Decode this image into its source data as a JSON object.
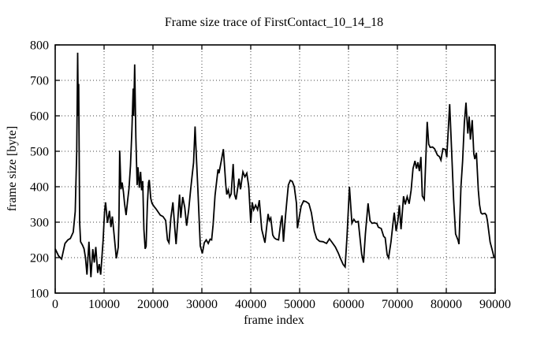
{
  "chart_data": {
    "type": "line",
    "title": "Frame size trace of FirstContact_10_14_18",
    "xlabel": "frame index",
    "ylabel": "frame size [byte]",
    "xlim": [
      0,
      90000
    ],
    "ylim": [
      100,
      800
    ],
    "x_ticks": [
      0,
      10000,
      20000,
      30000,
      40000,
      50000,
      60000,
      70000,
      80000,
      90000
    ],
    "y_ticks": [
      100,
      200,
      300,
      400,
      500,
      600,
      700,
      800
    ],
    "grid": true,
    "legend": "none",
    "line_color": "#000000",
    "background": "#ffffff",
    "series": [
      {
        "name": "frame size",
        "points": [
          [
            0,
            225
          ],
          [
            700,
            205
          ],
          [
            1300,
            196
          ],
          [
            2000,
            240
          ],
          [
            2600,
            250
          ],
          [
            3100,
            254
          ],
          [
            3700,
            272
          ],
          [
            4100,
            330
          ],
          [
            4400,
            500
          ],
          [
            4600,
            778
          ],
          [
            4720,
            600
          ],
          [
            4800,
            690
          ],
          [
            5000,
            300
          ],
          [
            5200,
            245
          ],
          [
            5600,
            235
          ],
          [
            5900,
            225
          ],
          [
            6200,
            200
          ],
          [
            6500,
            152
          ],
          [
            6900,
            245
          ],
          [
            7300,
            145
          ],
          [
            7700,
            224
          ],
          [
            8000,
            186
          ],
          [
            8300,
            230
          ],
          [
            8700,
            157
          ],
          [
            9000,
            182
          ],
          [
            9300,
            152
          ],
          [
            9800,
            250
          ],
          [
            10100,
            330
          ],
          [
            10300,
            356
          ],
          [
            10700,
            298
          ],
          [
            11100,
            332
          ],
          [
            11400,
            286
          ],
          [
            11700,
            316
          ],
          [
            12100,
            258
          ],
          [
            12500,
            198
          ],
          [
            12700,
            212
          ],
          [
            12900,
            230
          ],
          [
            13050,
            310
          ],
          [
            13200,
            502
          ],
          [
            13450,
            393
          ],
          [
            13700,
            412
          ],
          [
            13950,
            386
          ],
          [
            14200,
            352
          ],
          [
            14500,
            320
          ],
          [
            14800,
            360
          ],
          [
            15100,
            395
          ],
          [
            15400,
            460
          ],
          [
            15700,
            560
          ],
          [
            15950,
            677
          ],
          [
            16070,
            600
          ],
          [
            16250,
            745
          ],
          [
            16500,
            540
          ],
          [
            16750,
            405
          ],
          [
            16940,
            455
          ],
          [
            17210,
            397
          ],
          [
            17470,
            442
          ],
          [
            17680,
            390
          ],
          [
            17900,
            416
          ],
          [
            18150,
            280
          ],
          [
            18400,
            225
          ],
          [
            18600,
            232
          ],
          [
            18850,
            350
          ],
          [
            19100,
            412
          ],
          [
            19250,
            419
          ],
          [
            19550,
            367
          ],
          [
            19800,
            353
          ],
          [
            20200,
            345
          ],
          [
            20600,
            338
          ],
          [
            21150,
            327
          ],
          [
            21500,
            320
          ],
          [
            22050,
            316
          ],
          [
            22600,
            305
          ],
          [
            22960,
            250
          ],
          [
            23280,
            242
          ],
          [
            23660,
            312
          ],
          [
            24080,
            356
          ],
          [
            24460,
            282
          ],
          [
            24730,
            238
          ],
          [
            25110,
            312
          ],
          [
            25430,
            378
          ],
          [
            25690,
            312
          ],
          [
            26080,
            371
          ],
          [
            26500,
            342
          ],
          [
            26890,
            290
          ],
          [
            27300,
            335
          ],
          [
            27700,
            390
          ],
          [
            28000,
            430
          ],
          [
            28300,
            468
          ],
          [
            28620,
            570
          ],
          [
            28870,
            487
          ],
          [
            29200,
            390
          ],
          [
            29670,
            233
          ],
          [
            30100,
            212
          ],
          [
            30500,
            242
          ],
          [
            30900,
            250
          ],
          [
            31300,
            240
          ],
          [
            31700,
            252
          ],
          [
            32000,
            250
          ],
          [
            32300,
            293
          ],
          [
            32700,
            375
          ],
          [
            33300,
            449
          ],
          [
            33500,
            438
          ],
          [
            34000,
            475
          ],
          [
            34400,
            506
          ],
          [
            34900,
            404
          ],
          [
            35100,
            378
          ],
          [
            35400,
            391
          ],
          [
            35700,
            371
          ],
          [
            36000,
            380
          ],
          [
            36400,
            464
          ],
          [
            36700,
            378
          ],
          [
            37000,
            364
          ],
          [
            37600,
            423
          ],
          [
            37900,
            393
          ],
          [
            38400,
            442
          ],
          [
            38800,
            428
          ],
          [
            39200,
            438
          ],
          [
            39600,
            400
          ],
          [
            40000,
            298
          ],
          [
            40300,
            356
          ],
          [
            40600,
            335
          ],
          [
            41000,
            348
          ],
          [
            41400,
            335
          ],
          [
            41750,
            362
          ],
          [
            42250,
            280
          ],
          [
            42900,
            242
          ],
          [
            43550,
            323
          ],
          [
            43800,
            305
          ],
          [
            44100,
            312
          ],
          [
            44500,
            264
          ],
          [
            44800,
            256
          ],
          [
            45200,
            252
          ],
          [
            45700,
            250
          ],
          [
            46150,
            300
          ],
          [
            46400,
            319
          ],
          [
            46700,
            245
          ],
          [
            47000,
            300
          ],
          [
            47350,
            355
          ],
          [
            47700,
            405
          ],
          [
            48100,
            418
          ],
          [
            48500,
            415
          ],
          [
            48900,
            400
          ],
          [
            49350,
            353
          ],
          [
            49550,
            283
          ],
          [
            50300,
            345
          ],
          [
            50800,
            360
          ],
          [
            51300,
            358
          ],
          [
            51900,
            352
          ],
          [
            52400,
            327
          ],
          [
            53000,
            275
          ],
          [
            53500,
            253
          ],
          [
            54100,
            246
          ],
          [
            54800,
            245
          ],
          [
            55500,
            240
          ],
          [
            56100,
            253
          ],
          [
            56700,
            242
          ],
          [
            57300,
            230
          ],
          [
            57900,
            213
          ],
          [
            58400,
            196
          ],
          [
            58900,
            181
          ],
          [
            59300,
            174
          ],
          [
            59700,
            260
          ],
          [
            60200,
            400
          ],
          [
            60700,
            297
          ],
          [
            61100,
            308
          ],
          [
            61500,
            300
          ],
          [
            62000,
            302
          ],
          [
            62700,
            210
          ],
          [
            63070,
            186
          ],
          [
            63450,
            267
          ],
          [
            64000,
            353
          ],
          [
            64400,
            304
          ],
          [
            64800,
            297
          ],
          [
            65300,
            298
          ],
          [
            65800,
            296
          ],
          [
            66100,
            286
          ],
          [
            66700,
            282
          ],
          [
            67200,
            260
          ],
          [
            67500,
            256
          ],
          [
            67900,
            208
          ],
          [
            68200,
            199
          ],
          [
            68700,
            245
          ],
          [
            69100,
            297
          ],
          [
            69350,
            327
          ],
          [
            69750,
            275
          ],
          [
            70100,
            304
          ],
          [
            70400,
            348
          ],
          [
            70750,
            280
          ],
          [
            71250,
            373
          ],
          [
            71600,
            350
          ],
          [
            72000,
            372
          ],
          [
            72400,
            352
          ],
          [
            72800,
            390
          ],
          [
            73200,
            451
          ],
          [
            73600,
            473
          ],
          [
            73900,
            451
          ],
          [
            74200,
            469
          ],
          [
            74500,
            444
          ],
          [
            74800,
            484
          ],
          [
            75100,
            374
          ],
          [
            75500,
            364
          ],
          [
            76100,
            583
          ],
          [
            76400,
            520
          ],
          [
            76700,
            511
          ],
          [
            77200,
            512
          ],
          [
            77600,
            507
          ],
          [
            78200,
            489
          ],
          [
            78600,
            485
          ],
          [
            78900,
            475
          ],
          [
            79300,
            507
          ],
          [
            79800,
            505
          ],
          [
            80100,
            483
          ],
          [
            80700,
            633
          ],
          [
            81100,
            500
          ],
          [
            81500,
            364
          ],
          [
            81900,
            267
          ],
          [
            82400,
            249
          ],
          [
            82600,
            238
          ],
          [
            83000,
            400
          ],
          [
            83340,
            472
          ],
          [
            83700,
            580
          ],
          [
            84030,
            637
          ],
          [
            84400,
            550
          ],
          [
            84670,
            598
          ],
          [
            84940,
            533
          ],
          [
            85300,
            588
          ],
          [
            85630,
            493
          ],
          [
            85840,
            478
          ],
          [
            86160,
            496
          ],
          [
            86550,
            391
          ],
          [
            86800,
            349
          ],
          [
            87080,
            327
          ],
          [
            87350,
            323
          ],
          [
            87900,
            325
          ],
          [
            88200,
            320
          ],
          [
            88400,
            305
          ],
          [
            88970,
            244
          ],
          [
            89500,
            216
          ],
          [
            89770,
            200
          ]
        ]
      }
    ]
  }
}
